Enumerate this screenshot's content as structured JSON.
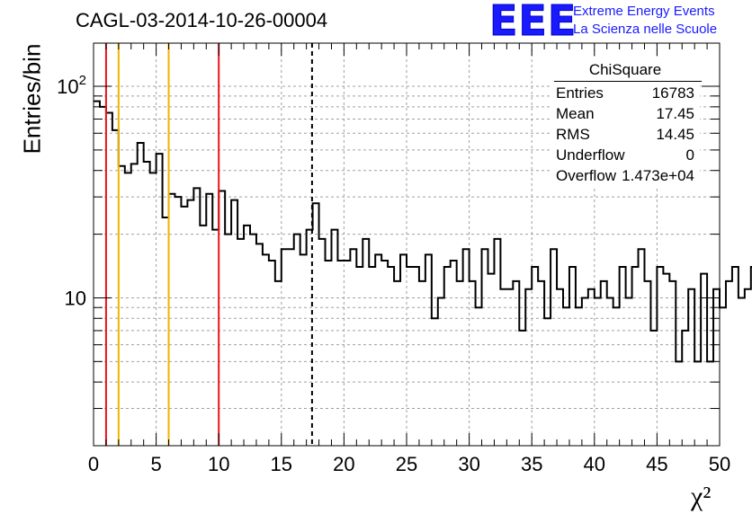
{
  "header": {
    "title": "CAGL-03-2014-10-26-00004",
    "logo_text": "EEE",
    "logo_line1": "Extreme Energy Events",
    "logo_line2": "La Scienza nelle Scuole"
  },
  "stats_box": {
    "title": "ChiSquare",
    "rows": [
      {
        "key": "Entries",
        "value": "16783"
      },
      {
        "key": "Mean",
        "value": "17.45"
      },
      {
        "key": "RMS",
        "value": "14.45"
      },
      {
        "key": "Underflow",
        "value": "0"
      },
      {
        "key": "Overflow",
        "value": "1.473e+04"
      }
    ]
  },
  "colors": {
    "histogram": "#000000",
    "red_lines": "#e8141e",
    "yellow_lines": "#f0b400",
    "mean_line": "#000000",
    "grid": "#a0a0a0",
    "logo": "#1a1aff"
  },
  "chart_data": {
    "type": "histogram",
    "title": "CAGL-03-2014-10-26-00004",
    "xlabel": "χ²",
    "ylabel": "Entries/bin",
    "xlim": [
      0,
      50
    ],
    "ylim": [
      2,
      160
    ],
    "log_y": true,
    "grid": true,
    "bin_width": 0.5,
    "x_ticks": [
      0,
      5,
      10,
      15,
      20,
      25,
      30,
      35,
      40,
      45,
      50
    ],
    "x_tick_labels": [
      "0",
      "5",
      "10",
      "15",
      "20",
      "25",
      "30",
      "35",
      "40",
      "45",
      "50"
    ],
    "y_ticks": [
      10,
      100
    ],
    "y_tick_labels": [
      "10",
      "10^2"
    ],
    "values": [
      85,
      80,
      75,
      62,
      42,
      39,
      43,
      54,
      44,
      39,
      48,
      24,
      31,
      30,
      27,
      29,
      33,
      22,
      31,
      21,
      32,
      20,
      29,
      19,
      22,
      20,
      18,
      16,
      15,
      12,
      17,
      17,
      20,
      16,
      21,
      28,
      19,
      15,
      21,
      15,
      15,
      17,
      14,
      19,
      14,
      16,
      15,
      14,
      12,
      16,
      14,
      14,
      12,
      16,
      8,
      10,
      14,
      15,
      12,
      17,
      12,
      9,
      17,
      13,
      19,
      11,
      11,
      12,
      7,
      11,
      14,
      12,
      8,
      17,
      11,
      9,
      14,
      9,
      10,
      11,
      10,
      12,
      10,
      9,
      14,
      10,
      14,
      17,
      12,
      7,
      14,
      13,
      12,
      5,
      7,
      11,
      5,
      13,
      5,
      11,
      9,
      12,
      14,
      10,
      11,
      14,
      11,
      6,
      5,
      13,
      7,
      12,
      9,
      5,
      12,
      12,
      14,
      13,
      11,
      12,
      5,
      6,
      11,
      9,
      12,
      8,
      11,
      12,
      13,
      6,
      9,
      5,
      5,
      12,
      6,
      11,
      10,
      11,
      9,
      10,
      7,
      5,
      9,
      8,
      13,
      11,
      9,
      6,
      5,
      10
    ],
    "vertical_lines": [
      {
        "x": 1,
        "color": "red"
      },
      {
        "x": 2,
        "color": "yellow"
      },
      {
        "x": 6,
        "color": "yellow"
      },
      {
        "x": 10,
        "color": "red"
      },
      {
        "x": 17.45,
        "color": "black-dashed"
      }
    ]
  }
}
